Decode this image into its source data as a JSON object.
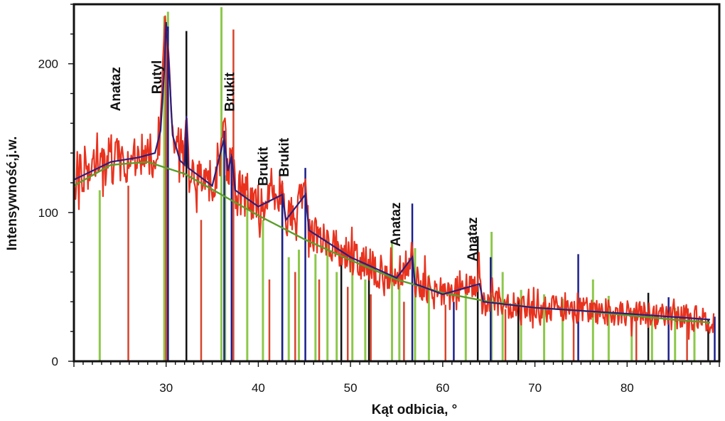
{
  "chart_data": {
    "type": "line",
    "title": "",
    "xlabel": "Kąt odbicia, °",
    "ylabel": "Intensywność,j.w.",
    "xlim": [
      20,
      90
    ],
    "ylim": [
      0,
      240
    ],
    "x_ticks": [
      30,
      40,
      50,
      60,
      70,
      80
    ],
    "y_ticks": [
      0,
      100,
      200
    ],
    "grid": false,
    "colors": {
      "measured": "#e8321e",
      "fit": "#2a1f7a",
      "background": "#5a9e2a",
      "ref_green": "#8cc84a",
      "ref_red": "#d8432c",
      "ref_black": "#111111",
      "ref_blue": "#1b1f8c"
    },
    "series": [
      {
        "role": "measured",
        "peaks": [
          [
            29.9,
            232
          ],
          [
            30.2,
            215
          ],
          [
            32.2,
            168
          ],
          [
            36.3,
            155
          ],
          [
            37.1,
            140
          ],
          [
            42.6,
            122
          ],
          [
            45.1,
            118
          ],
          [
            56.7,
            72
          ],
          [
            64.0,
            55
          ]
        ]
      },
      {
        "role": "fit",
        "points": [
          [
            20,
            122
          ],
          [
            24,
            134
          ],
          [
            27,
            137
          ],
          [
            28.8,
            140
          ],
          [
            29.4,
            155
          ],
          [
            29.8,
            195
          ],
          [
            30.0,
            228
          ],
          [
            30.3,
            200
          ],
          [
            30.7,
            152
          ],
          [
            31.5,
            135
          ],
          [
            32.0,
            132
          ],
          [
            32.2,
            165
          ],
          [
            32.4,
            130
          ],
          [
            35.0,
            118
          ],
          [
            36.3,
            150
          ],
          [
            36.7,
            128
          ],
          [
            37.1,
            138
          ],
          [
            37.5,
            115
          ],
          [
            40,
            104
          ],
          [
            42.6,
            112
          ],
          [
            43,
            95
          ],
          [
            45.1,
            112
          ],
          [
            45.5,
            88
          ],
          [
            50,
            70
          ],
          [
            55,
            56
          ],
          [
            56.7,
            70
          ],
          [
            57,
            52
          ],
          [
            60,
            45
          ],
          [
            64.0,
            52
          ],
          [
            64.4,
            40
          ],
          [
            70,
            36
          ],
          [
            80,
            32
          ],
          [
            89,
            28
          ]
        ]
      },
      {
        "role": "background",
        "points": [
          [
            20,
            118
          ],
          [
            24,
            132
          ],
          [
            28,
            134
          ],
          [
            32,
            126
          ],
          [
            36,
            112
          ],
          [
            40,
            98
          ],
          [
            45,
            82
          ],
          [
            50,
            68
          ],
          [
            55,
            55
          ],
          [
            60,
            46
          ],
          [
            65,
            40
          ],
          [
            70,
            36
          ],
          [
            75,
            34
          ],
          [
            80,
            31
          ],
          [
            85,
            28
          ],
          [
            89,
            26
          ]
        ]
      }
    ],
    "reference_lines": {
      "green": [
        [
          22.8,
          115
        ],
        [
          29.8,
          232
        ],
        [
          30.2,
          235
        ],
        [
          36.0,
          238
        ],
        [
          36.4,
          125
        ],
        [
          38.8,
          112
        ],
        [
          40.5,
          95
        ],
        [
          43.3,
          70
        ],
        [
          44.4,
          75
        ],
        [
          46.2,
          72
        ],
        [
          47.5,
          86
        ],
        [
          48.5,
          60
        ],
        [
          50.2,
          70
        ],
        [
          51.6,
          55
        ],
        [
          54.5,
          80
        ],
        [
          55.3,
          52
        ],
        [
          57.0,
          76
        ],
        [
          58.5,
          58
        ],
        [
          62.5,
          48
        ],
        [
          65.3,
          87
        ],
        [
          66.5,
          60
        ],
        [
          68.5,
          48
        ],
        [
          71.0,
          45
        ],
        [
          73.0,
          42
        ],
        [
          76.3,
          55
        ],
        [
          78.0,
          44
        ],
        [
          80.5,
          34
        ],
        [
          82.7,
          32
        ],
        [
          85.2,
          36
        ],
        [
          87.3,
          30
        ]
      ],
      "red": [
        [
          25.9,
          118
        ],
        [
          30.0,
          226
        ],
        [
          33.8,
          95
        ],
        [
          37.3,
          223
        ],
        [
          41.2,
          55
        ],
        [
          44.0,
          60
        ],
        [
          46.6,
          55
        ],
        [
          49.7,
          50
        ],
        [
          52.2,
          45
        ],
        [
          55.8,
          40
        ],
        [
          60.3,
          38
        ],
        [
          66.8,
          35
        ],
        [
          74.2,
          32
        ],
        [
          81.0,
          30
        ],
        [
          86.5,
          28
        ]
      ],
      "black": [
        [
          32.2,
          222
        ],
        [
          42.6,
          120
        ],
        [
          49.0,
          77
        ],
        [
          52.0,
          61
        ],
        [
          63.8,
          84
        ],
        [
          68.2,
          42
        ],
        [
          82.3,
          46
        ],
        [
          88.8,
          28
        ]
      ],
      "blue": [
        [
          30.2,
          225
        ],
        [
          36.3,
          155
        ],
        [
          37.1,
          142
        ],
        [
          42.6,
          120
        ],
        [
          45.1,
          130
        ],
        [
          56.7,
          106
        ],
        [
          61.2,
          40
        ],
        [
          65.2,
          70
        ],
        [
          74.7,
          72
        ],
        [
          84.5,
          43
        ],
        [
          89.5,
          30
        ]
      ]
    },
    "annotations": [
      {
        "text": "Anataz",
        "x": 25.0,
        "y": 183
      },
      {
        "text": "Rutyl",
        "x": 29.5,
        "y": 191
      },
      {
        "text": "Brukit",
        "x": 37.4,
        "y": 181
      },
      {
        "text": "Brukit",
        "x": 41.0,
        "y": 131
      },
      {
        "text": "Brukit",
        "x": 43.3,
        "y": 137
      },
      {
        "text": "Anataz",
        "x": 55.4,
        "y": 92
      },
      {
        "text": "Anataz",
        "x": 63.7,
        "y": 82
      }
    ]
  }
}
